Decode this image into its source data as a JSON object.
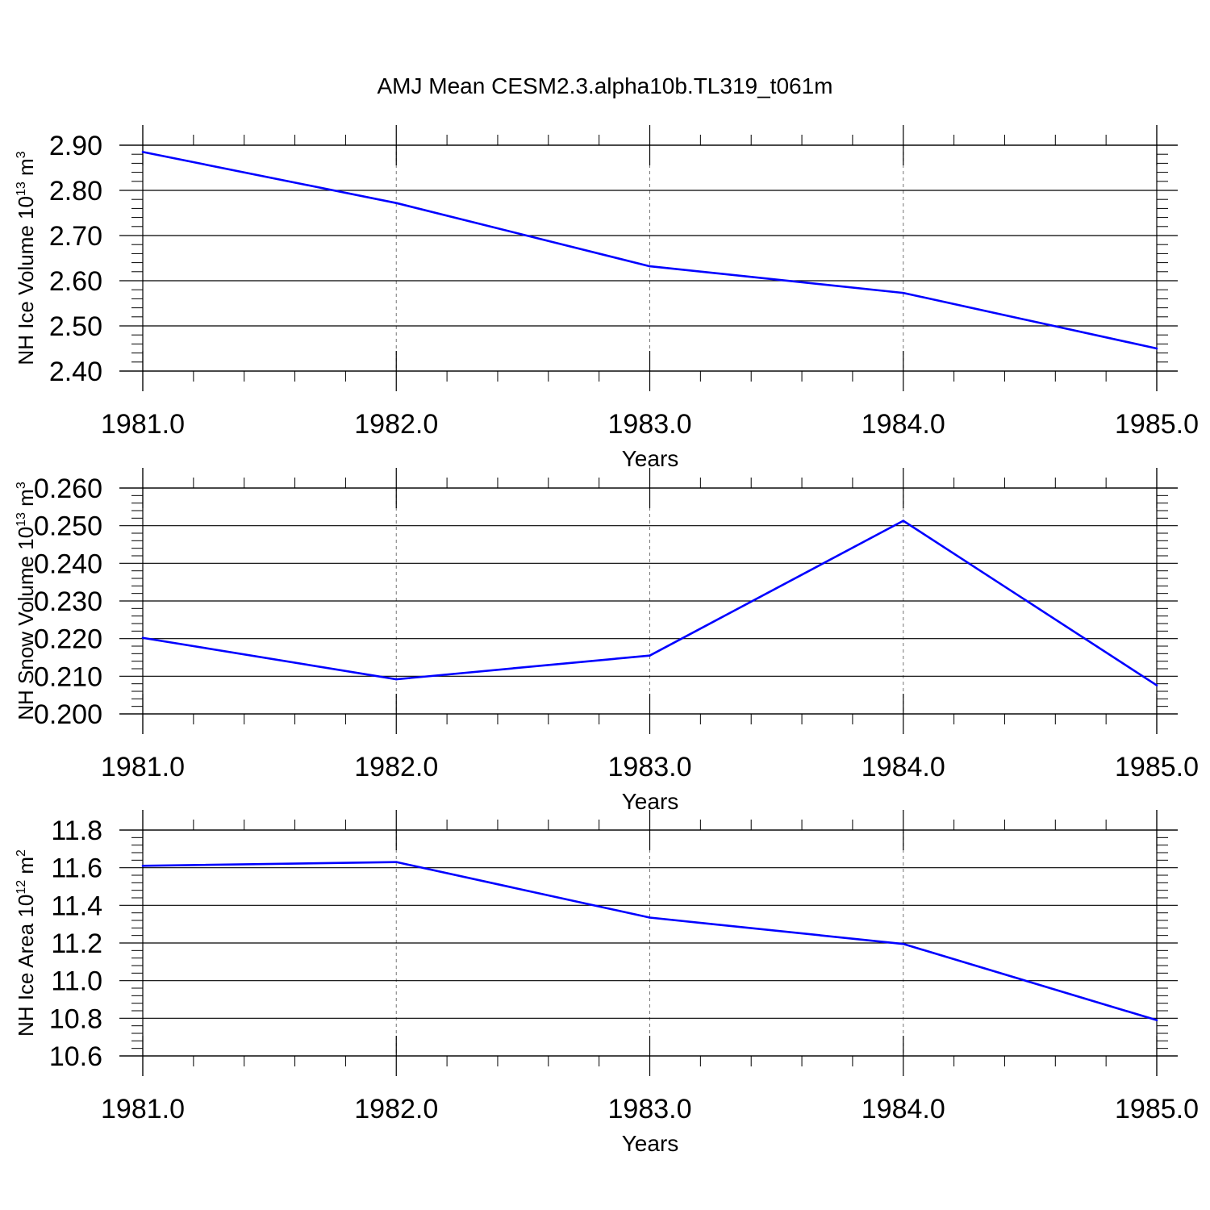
{
  "title": "AMJ Mean CESM2.3.alpha10b.TL319_t061m",
  "chart_data": [
    {
      "type": "line",
      "title": "AMJ Mean CESM2.3.alpha10b.TL319_t061m",
      "xlabel": "Years",
      "ylabel": {
        "base": "NH Ice Volume 10",
        "exp": "13",
        "unit": " m",
        "unit_exp": "3"
      },
      "x": [
        1981.0,
        1982.0,
        1983.0,
        1984.0,
        1985.0
      ],
      "xlim": [
        1981.0,
        1985.0
      ],
      "xticks": [
        "1981.0",
        "1982.0",
        "1983.0",
        "1984.0",
        "1985.0"
      ],
      "ylim": [
        2.4,
        2.9
      ],
      "yticks": [
        "2.40",
        "2.50",
        "2.60",
        "2.70",
        "2.80",
        "2.90"
      ],
      "series": [
        {
          "values": [
            2.885,
            2.772,
            2.632,
            2.573,
            2.45
          ],
          "color": "#0000ff"
        }
      ],
      "grid": "vertical dashed at major x ticks"
    },
    {
      "type": "line",
      "xlabel": "Years",
      "ylabel": {
        "base": "NH Snow Volume 10",
        "exp": "13",
        "unit": " m",
        "unit_exp": "3"
      },
      "x": [
        1981.0,
        1982.0,
        1983.0,
        1984.0,
        1985.0
      ],
      "xlim": [
        1981.0,
        1985.0
      ],
      "xticks": [
        "1981.0",
        "1982.0",
        "1983.0",
        "1984.0",
        "1985.0"
      ],
      "ylim": [
        0.2,
        0.26
      ],
      "yticks": [
        "0.200",
        "0.210",
        "0.220",
        "0.230",
        "0.240",
        "0.250",
        "0.260"
      ],
      "series": [
        {
          "values": [
            0.2202,
            0.2092,
            0.2155,
            0.2513,
            0.2076
          ],
          "color": "#0000ff"
        }
      ],
      "grid": "vertical dashed at major x ticks"
    },
    {
      "type": "line",
      "xlabel": "Years",
      "ylabel": {
        "base": "NH Ice Area 10",
        "exp": "12",
        "unit": " m",
        "unit_exp": "2"
      },
      "x": [
        1981.0,
        1982.0,
        1983.0,
        1984.0,
        1985.0
      ],
      "xlim": [
        1981.0,
        1985.0
      ],
      "xticks": [
        "1981.0",
        "1982.0",
        "1983.0",
        "1984.0",
        "1985.0"
      ],
      "ylim": [
        10.6,
        11.8
      ],
      "yticks": [
        "10.6",
        "10.8",
        "11.0",
        "11.2",
        "11.4",
        "11.6",
        "11.8"
      ],
      "series": [
        {
          "values": [
            11.61,
            11.63,
            11.335,
            11.195,
            10.79
          ],
          "color": "#0000ff"
        }
      ],
      "grid": "vertical dashed at major x ticks"
    }
  ]
}
